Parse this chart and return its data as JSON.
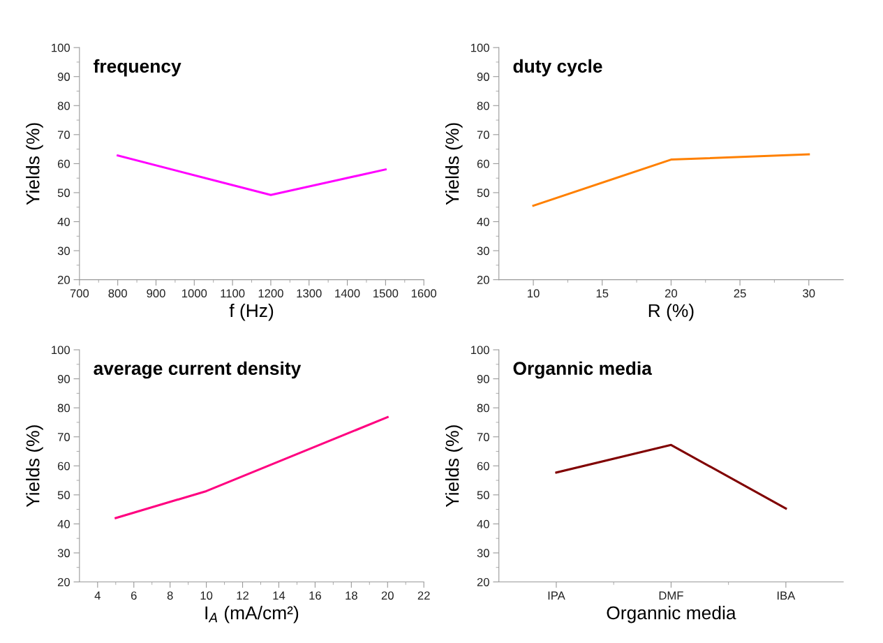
{
  "chart_data": [
    {
      "type": "line",
      "title": "frequency",
      "xlabel": "f (Hz)",
      "ylabel": "Yields (%)",
      "x": [
        800,
        1200,
        1500
      ],
      "series": [
        {
          "color": "#ff00ff",
          "values": [
            62.8,
            49.2,
            58.0
          ]
        }
      ],
      "xlim": [
        700,
        1600
      ],
      "xticks": [
        700,
        800,
        900,
        1000,
        1100,
        1200,
        1300,
        1400,
        1500,
        1600
      ],
      "ylim": [
        20,
        100
      ],
      "yticks": [
        20,
        30,
        40,
        50,
        60,
        70,
        80,
        90,
        100
      ],
      "grid": false,
      "legend": false,
      "marker": "none",
      "line_style": "solid"
    },
    {
      "type": "line",
      "title": "duty cycle",
      "xlabel": "R (%)",
      "ylabel": "Yields (%)",
      "x": [
        10,
        20,
        30
      ],
      "series": [
        {
          "color": "#ff8000",
          "values": [
            45.5,
            61.4,
            63.2
          ]
        }
      ],
      "xlim": [
        7.5,
        32.5
      ],
      "xticks": [
        10,
        15,
        20,
        25,
        30
      ],
      "ylim": [
        20,
        100
      ],
      "yticks": [
        20,
        30,
        40,
        50,
        60,
        70,
        80,
        90,
        100
      ],
      "grid": false,
      "legend": false,
      "marker": "none",
      "line_style": "solid"
    },
    {
      "type": "line",
      "title": "average current density",
      "xlabel": "I$_{A}$ (mA/cm²)",
      "ylabel": "Yields (%)",
      "x": [
        5,
        10,
        20
      ],
      "series": [
        {
          "color": "#ff0080",
          "values": [
            42.0,
            51.3,
            76.8
          ]
        }
      ],
      "xlim": [
        3,
        22
      ],
      "xticks": [
        4,
        6,
        8,
        10,
        12,
        14,
        16,
        18,
        20,
        22
      ],
      "ylim": [
        20,
        100
      ],
      "yticks": [
        20,
        30,
        40,
        50,
        60,
        70,
        80,
        90,
        100
      ],
      "grid": false,
      "legend": false,
      "marker": "none",
      "line_style": "solid"
    },
    {
      "type": "line",
      "title": "Organnic media",
      "xlabel": "Organnic media",
      "ylabel": "Yields (%)",
      "categories": [
        "IPA",
        "DMF",
        "IBA"
      ],
      "series": [
        {
          "color": "#800000",
          "values": [
            57.7,
            67.2,
            45.3
          ]
        }
      ],
      "ylim": [
        20,
        100
      ],
      "yticks": [
        20,
        30,
        40,
        50,
        60,
        70,
        80,
        90,
        100
      ],
      "grid": false,
      "legend": false,
      "marker": "none",
      "line_style": "solid"
    }
  ]
}
